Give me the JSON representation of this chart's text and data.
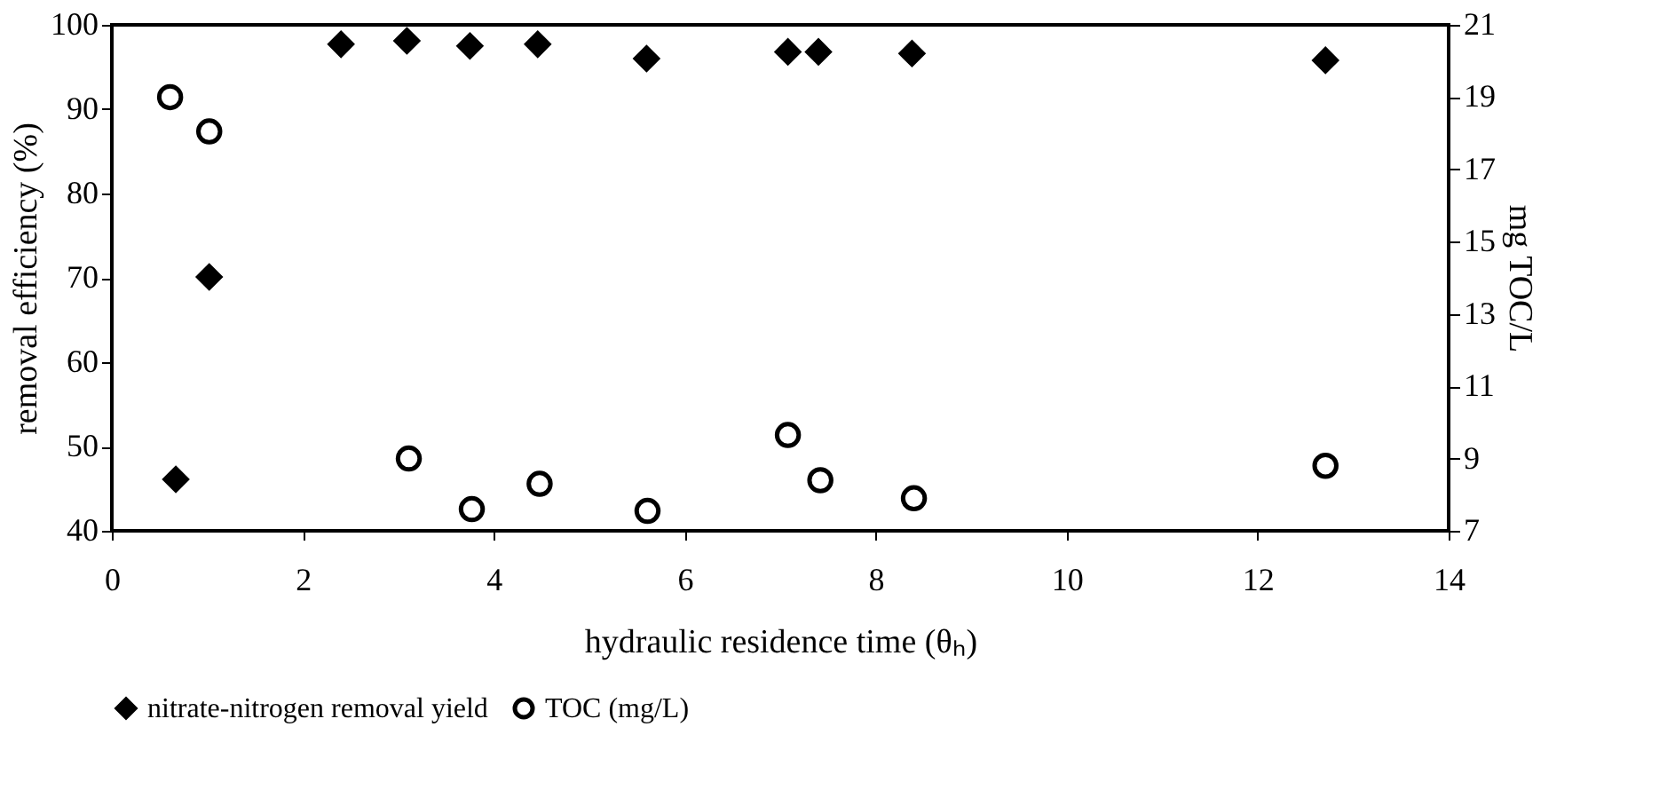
{
  "chart_data": {
    "type": "scatter",
    "xlabel": "hydraulic residence time (θₕ)",
    "ylabel": "removal efficiency  (%)",
    "y2label": "mg TOC/L",
    "xlim": [
      0,
      14
    ],
    "xticks": [
      0,
      2,
      4,
      6,
      8,
      10,
      12,
      14
    ],
    "ylim": [
      40,
      100
    ],
    "yticks": [
      40,
      50,
      60,
      70,
      80,
      90,
      100
    ],
    "y2lim": [
      7,
      21
    ],
    "y2ticks": [
      7,
      9,
      11,
      13,
      15,
      17,
      19,
      21
    ],
    "grid": false,
    "legend": "bottom",
    "series": [
      {
        "name": "nitrate-nitrogen removal yield",
        "color": "#000000",
        "marker": "diamond",
        "x": [
          0.67,
          1.02,
          2.4,
          3.09,
          3.75,
          4.46,
          5.6,
          7.08,
          7.4,
          8.38,
          12.71
        ],
        "values": [
          46.1,
          70.1,
          97.7,
          98.1,
          97.5,
          97.7,
          96.0,
          96.8,
          96.8,
          96.6,
          95.8
        ]
      },
      {
        "name": "TOC (mg/L)",
        "color": "#000000",
        "marker": "circle",
        "axis": "y2",
        "x": [
          0.61,
          1.02,
          3.11,
          3.77,
          4.48,
          5.61,
          7.08,
          7.42,
          8.4,
          12.71
        ],
        "values": [
          19.0,
          18.05,
          9.0,
          7.6,
          8.3,
          7.55,
          9.65,
          8.4,
          7.9,
          8.8
        ]
      }
    ]
  }
}
